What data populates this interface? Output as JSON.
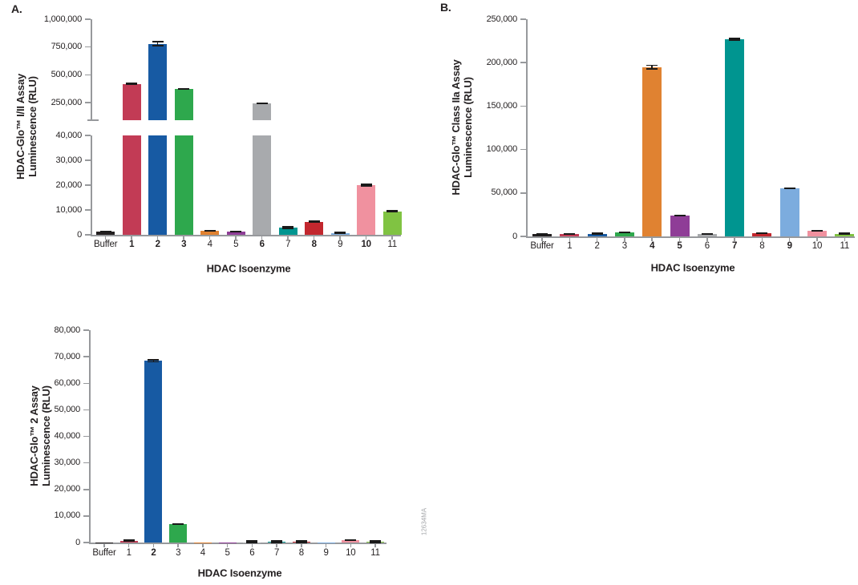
{
  "figure": {
    "watermark": "12634MA",
    "xlabel": "HDAC Isoenzyme",
    "axis_color": "#97999C",
    "text_color": "#231F20"
  },
  "chart_data": [
    {
      "id": "A",
      "type": "bar",
      "panel_label": "A.",
      "ylabel_line1": "HDAC-Glo™ I/II Assay",
      "ylabel_line2": "Luminescence (RLU)",
      "xlabel": "HDAC Isoenzyme",
      "categories": [
        "Buffer",
        "1",
        "2",
        "3",
        "4",
        "5",
        "6",
        "7",
        "8",
        "9",
        "10",
        "11"
      ],
      "bold_categories": [
        "1",
        "2",
        "3",
        "6",
        "8",
        "10"
      ],
      "values": [
        1200,
        420000,
        780000,
        375000,
        1600,
        1300,
        245000,
        2900,
        5200,
        800,
        20000,
        9400
      ],
      "errors": [
        250,
        12000,
        23000,
        4000,
        450,
        250,
        4000,
        600,
        500,
        200,
        700,
        500
      ],
      "colors": [
        "#231F20",
        "#C23B55",
        "#175AA3",
        "#2EA84D",
        "#E08231",
        "#8F3D97",
        "#A8AAAD",
        "#009590",
        "#C2272E",
        "#7CACDE",
        "#F0919F",
        "#80C342"
      ],
      "axis_break": true,
      "y_segments": [
        {
          "name": "upper",
          "range": [
            250000,
            1000000
          ],
          "ticks": [
            {
              "v": 1000000,
              "label": "1,000,000"
            },
            {
              "v": 750000,
              "label": "750,000"
            },
            {
              "v": 500000,
              "label": "500,000"
            },
            {
              "v": 250000,
              "label": "250,000"
            }
          ]
        },
        {
          "name": "lower",
          "range": [
            0,
            40000
          ],
          "ticks": [
            {
              "v": 40000,
              "label": "40,000"
            },
            {
              "v": 30000,
              "label": "30,000"
            },
            {
              "v": 20000,
              "label": "20,000"
            },
            {
              "v": 10000,
              "label": "10,000"
            },
            {
              "v": 0,
              "label": "0"
            }
          ]
        }
      ]
    },
    {
      "id": "B",
      "type": "bar",
      "panel_label": "B.",
      "ylabel_line1": "HDAC-Glo™ Class IIa Assay",
      "ylabel_line2": "Luminescence (RLU)",
      "xlabel": "HDAC Isoenzyme",
      "categories": [
        "Buffer",
        "1",
        "2",
        "3",
        "4",
        "5",
        "6",
        "7",
        "8",
        "9",
        "10",
        "11"
      ],
      "bold_categories": [
        "4",
        "5",
        "7",
        "9"
      ],
      "values": [
        2500,
        2800,
        2800,
        4600,
        195000,
        24000,
        2800,
        227000,
        3700,
        55000,
        6500,
        2800
      ],
      "errors": [
        400,
        500,
        300,
        400,
        2800,
        900,
        500,
        1800,
        600,
        900,
        1000,
        300
      ],
      "colors": [
        "#231F20",
        "#C23B55",
        "#175AA3",
        "#2EA84D",
        "#E08231",
        "#8F3D97",
        "#A8AAAD",
        "#009590",
        "#C2272E",
        "#7CACDE",
        "#F0919F",
        "#80C342"
      ],
      "axis_break": false,
      "y_segments": [
        {
          "name": "full",
          "range": [
            0,
            250000
          ],
          "ticks": [
            {
              "v": 250000,
              "label": "250,000"
            },
            {
              "v": 200000,
              "label": "200,000"
            },
            {
              "v": 150000,
              "label": "150,000"
            },
            {
              "v": 100000,
              "label": "100,000"
            },
            {
              "v": 50000,
              "label": "50,000"
            },
            {
              "v": 0,
              "label": "0"
            }
          ]
        }
      ]
    },
    {
      "id": "C",
      "type": "bar",
      "panel_label": "",
      "ylabel_line1": "HDAC-Glo™ 2 Assay",
      "ylabel_line2": "Luminescence (RLU)",
      "xlabel": "HDAC Isoenzyme",
      "categories": [
        "Buffer",
        "1",
        "2",
        "3",
        "4",
        "5",
        "6",
        "7",
        "8",
        "9",
        "10",
        "11"
      ],
      "bold_categories": [
        "2"
      ],
      "values": [
        50,
        700,
        68500,
        7000,
        50,
        50,
        150,
        200,
        250,
        50,
        900,
        250
      ],
      "errors": [
        0,
        120,
        700,
        350,
        0,
        0,
        60,
        60,
        90,
        0,
        280,
        90
      ],
      "colors": [
        "#231F20",
        "#C23B55",
        "#175AA3",
        "#2EA84D",
        "#E08231",
        "#8F3D97",
        "#A8AAAD",
        "#009590",
        "#C2272E",
        "#7CACDE",
        "#F0919F",
        "#80C342"
      ],
      "axis_break": false,
      "y_segments": [
        {
          "name": "full",
          "range": [
            0,
            80000
          ],
          "ticks": [
            {
              "v": 80000,
              "label": "80,000"
            },
            {
              "v": 70000,
              "label": "70,000"
            },
            {
              "v": 60000,
              "label": "60,000"
            },
            {
              "v": 50000,
              "label": "50,000"
            },
            {
              "v": 40000,
              "label": "40,000"
            },
            {
              "v": 30000,
              "label": "30,000"
            },
            {
              "v": 20000,
              "label": "20,000"
            },
            {
              "v": 10000,
              "label": "10,000"
            },
            {
              "v": 0,
              "label": "0"
            }
          ]
        }
      ]
    }
  ]
}
